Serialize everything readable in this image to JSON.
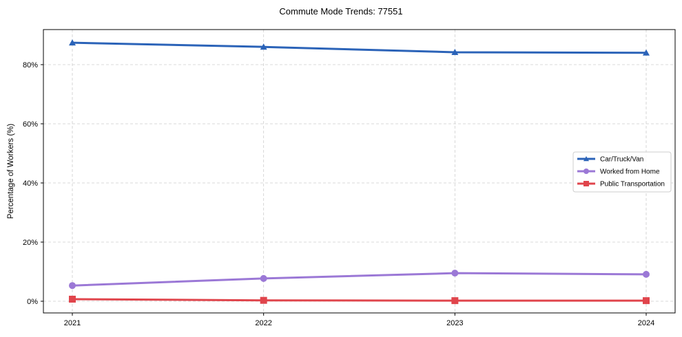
{
  "chart_data": {
    "type": "line",
    "title": "Commute Mode Trends: 77551",
    "xlabel": "",
    "ylabel": "Percentage of Workers (%)",
    "x": [
      "2021",
      "2022",
      "2023",
      "2024"
    ],
    "yticks": [
      "0%",
      "20%",
      "40%",
      "60%",
      "80%"
    ],
    "ylim": [
      -4.3,
      90.6
    ],
    "grid": true,
    "legend_position": "center right",
    "series": [
      {
        "name": "Car/Truck/Van",
        "values": [
          87.4,
          86.0,
          84.2,
          84.0
        ],
        "color": "#2b63b8",
        "marker": "triangle"
      },
      {
        "name": "Worked from Home",
        "values": [
          5.3,
          7.7,
          9.5,
          9.1
        ],
        "color": "#9b78d6",
        "marker": "circle"
      },
      {
        "name": "Public Transportation",
        "values": [
          0.7,
          0.3,
          0.2,
          0.2
        ],
        "color": "#e0454c",
        "marker": "square"
      }
    ]
  }
}
